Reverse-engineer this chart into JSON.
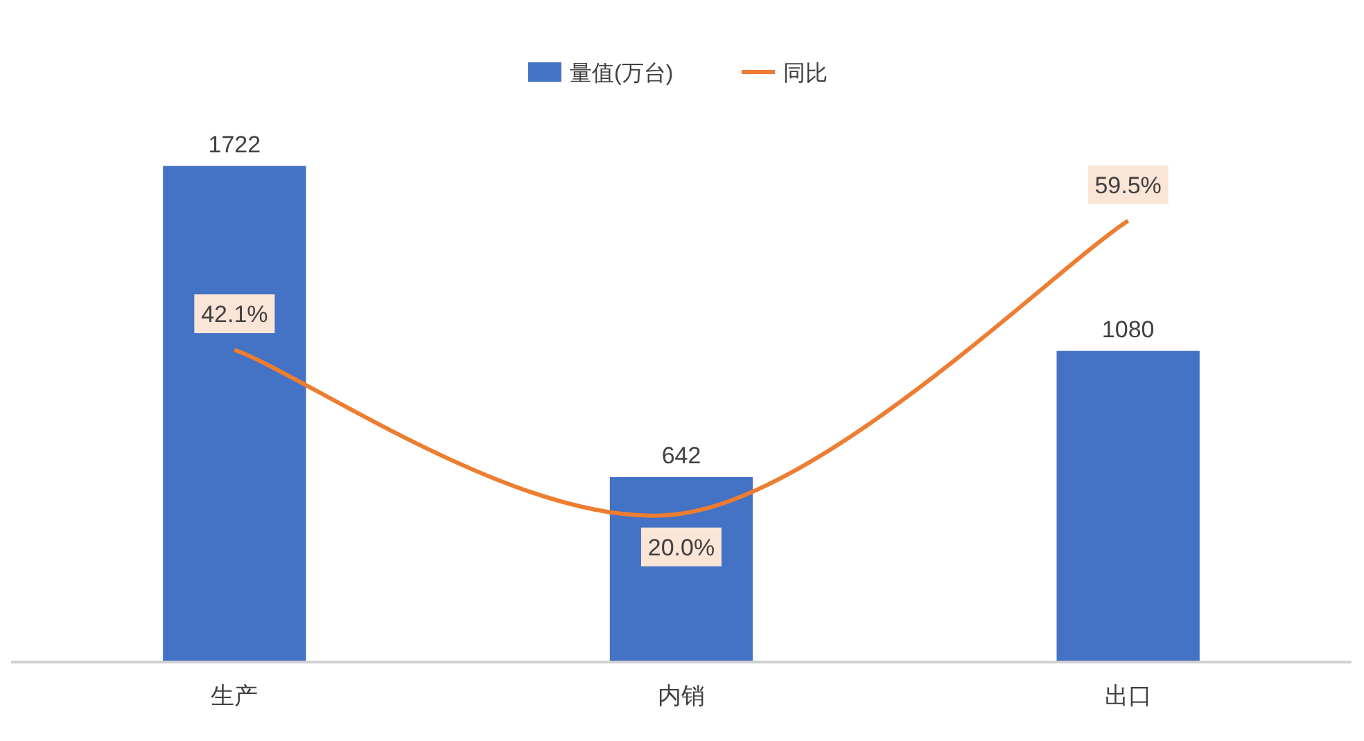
{
  "chart_data": {
    "type": "bar",
    "categories": [
      "生产",
      "内销",
      "出口"
    ],
    "series": [
      {
        "name": "量值(万台)",
        "color": "#4472c4",
        "values": [
          1722,
          642,
          1080
        ]
      },
      {
        "name": "同比",
        "type": "line",
        "axis": "y2",
        "color": "#ed7d31",
        "values": [
          42.1,
          20.0,
          59.5
        ],
        "value_labels": [
          "42.1%",
          "20.0%",
          "59.5%"
        ]
      }
    ],
    "data_labels": true,
    "legend": "top",
    "marker": "none",
    "line_style": "solid",
    "grid": false
  }
}
